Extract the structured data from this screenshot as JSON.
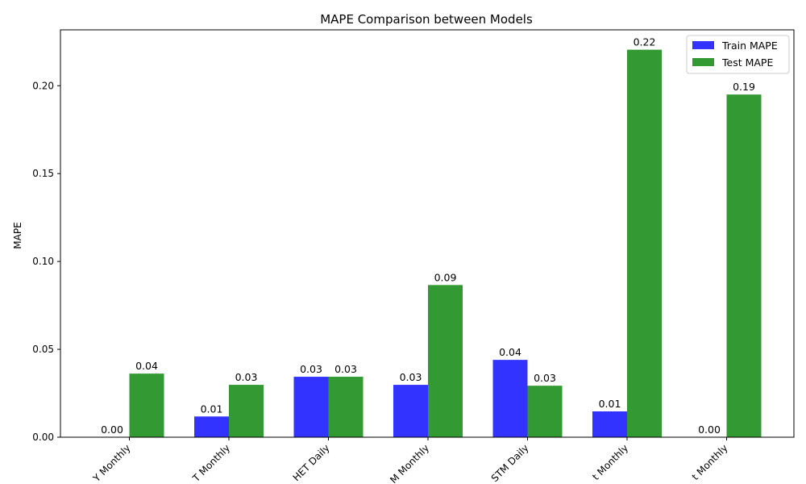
{
  "chart_data": {
    "type": "bar",
    "title": "MAPE Comparison between Models",
    "xlabel": "",
    "ylabel": "MAPE",
    "ylim": [
      0,
      0.2318
    ],
    "yticks": [
      "0.00",
      "0.05",
      "0.10",
      "0.15",
      "0.20"
    ],
    "ytick_values": [
      0,
      0.05,
      0.1,
      0.15,
      0.2
    ],
    "categories": [
      "Y Monthly",
      "T Monthly",
      "HET Daily",
      "M Monthly",
      "STM Daily",
      "t Monthly",
      "t Monthly"
    ],
    "grid": false,
    "legend_position": "top-right",
    "series": [
      {
        "name": "Train MAPE",
        "color": "#3333ff",
        "values": [
          0.0,
          0.0118,
          0.0344,
          0.0298,
          0.044,
          0.0147,
          0.0
        ],
        "labels": [
          "0.00",
          "0.01",
          "0.03",
          "0.03",
          "0.04",
          "0.01",
          "0.00"
        ]
      },
      {
        "name": "Test MAPE",
        "color": "#339933",
        "values": [
          0.0362,
          0.0298,
          0.0344,
          0.0866,
          0.0293,
          0.2205,
          0.195
        ],
        "labels": [
          "0.04",
          "0.03",
          "0.03",
          "0.09",
          "0.03",
          "0.22",
          "0.19"
        ]
      }
    ]
  }
}
